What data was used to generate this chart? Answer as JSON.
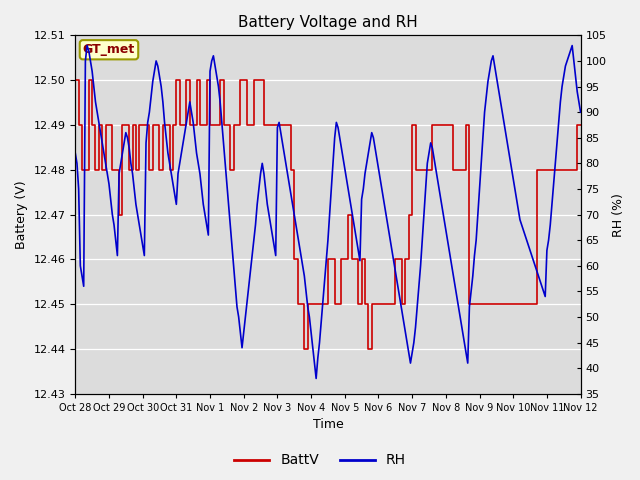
{
  "title": "Battery Voltage and RH",
  "xlabel": "Time",
  "ylabel_left": "Battery (V)",
  "ylabel_right": "RH (%)",
  "annotation": "GT_met",
  "left_ylim": [
    12.43,
    12.51
  ],
  "right_ylim": [
    35,
    105
  ],
  "left_yticks": [
    12.43,
    12.44,
    12.45,
    12.46,
    12.47,
    12.48,
    12.49,
    12.5,
    12.51
  ],
  "right_yticks": [
    35,
    40,
    45,
    50,
    55,
    60,
    65,
    70,
    75,
    80,
    85,
    90,
    95,
    100,
    105
  ],
  "xtick_labels": [
    "Oct 28",
    "Oct 29",
    "Oct 30",
    "Oct 31",
    "Nov 1",
    "Nov 2",
    "Nov 3",
    "Nov 4",
    "Nov 5",
    "Nov 6",
    "Nov 7",
    "Nov 8",
    "Nov 9",
    "Nov 10",
    "Nov 11",
    "Nov 12"
  ],
  "bg_color": "#dcdcdc",
  "fig_bg_color": "#f0f0f0",
  "line_color_battv": "#cc0000",
  "line_color_rh": "#0000cc",
  "legend_battv": "BattV",
  "legend_rh": "RH",
  "total_days": 15,
  "battv_x": [
    0.0,
    0.1,
    0.2,
    0.3,
    0.4,
    0.5,
    0.6,
    0.7,
    0.8,
    0.9,
    1.0,
    1.1,
    1.2,
    1.3,
    1.4,
    1.5,
    1.6,
    1.7,
    1.8,
    1.9,
    2.0,
    2.1,
    2.2,
    2.3,
    2.4,
    2.5,
    2.6,
    2.7,
    2.8,
    2.9,
    3.0,
    3.1,
    3.2,
    3.3,
    3.4,
    3.5,
    3.6,
    3.7,
    3.8,
    3.9,
    4.0,
    4.1,
    4.2,
    4.3,
    4.4,
    4.5,
    4.6,
    4.7,
    4.8,
    4.9,
    5.0,
    5.1,
    5.2,
    5.3,
    5.4,
    5.5,
    5.6,
    5.7,
    5.8,
    5.9,
    6.0,
    6.1,
    6.2,
    6.3,
    6.4,
    6.5,
    6.6,
    6.7,
    6.8,
    6.9,
    7.0,
    7.1,
    7.2,
    7.3,
    7.4,
    7.5,
    7.6,
    7.7,
    7.8,
    7.9,
    8.0,
    8.1,
    8.2,
    8.3,
    8.4,
    8.5,
    8.6,
    8.7,
    8.8,
    8.9,
    9.0,
    9.1,
    9.2,
    9.3,
    9.4,
    9.5,
    9.6,
    9.7,
    9.8,
    9.9,
    10.0,
    10.1,
    10.2,
    10.3,
    10.4,
    10.5,
    10.6,
    10.7,
    10.8,
    10.9,
    11.0,
    11.1,
    11.2,
    11.3,
    11.4,
    11.5,
    11.6,
    11.7,
    11.8,
    11.9,
    12.0,
    12.1,
    12.2,
    12.3,
    12.4,
    12.5,
    12.6,
    12.7,
    12.8,
    12.9,
    13.0,
    13.1,
    13.2,
    13.3,
    13.4,
    13.5,
    13.6,
    13.7,
    13.8,
    13.9,
    14.0,
    14.1,
    14.2,
    14.3,
    14.4,
    14.5,
    14.6,
    14.7,
    14.8,
    14.9,
    15.0
  ],
  "battv_y": [
    12.5,
    12.49,
    12.48,
    12.48,
    12.5,
    12.49,
    12.48,
    12.49,
    12.48,
    12.49,
    12.49,
    12.48,
    12.48,
    12.47,
    12.49,
    12.49,
    12.48,
    12.49,
    12.48,
    12.49,
    12.49,
    12.49,
    12.48,
    12.49,
    12.49,
    12.48,
    12.49,
    12.49,
    12.48,
    12.49,
    12.5,
    12.49,
    12.49,
    12.5,
    12.49,
    12.49,
    12.5,
    12.49,
    12.49,
    12.5,
    12.49,
    12.49,
    12.49,
    12.5,
    12.49,
    12.49,
    12.48,
    12.49,
    12.49,
    12.5,
    12.5,
    12.49,
    12.49,
    12.5,
    12.5,
    12.5,
    12.49,
    12.49,
    12.49,
    12.49,
    12.49,
    12.49,
    12.49,
    12.49,
    12.48,
    12.46,
    12.45,
    12.45,
    12.44,
    12.45,
    12.45,
    12.45,
    12.45,
    12.45,
    12.45,
    12.46,
    12.46,
    12.45,
    12.45,
    12.46,
    12.46,
    12.47,
    12.46,
    12.46,
    12.45,
    12.46,
    12.45,
    12.44,
    12.45,
    12.45,
    12.45,
    12.45,
    12.45,
    12.45,
    12.45,
    12.46,
    12.46,
    12.45,
    12.46,
    12.47,
    12.49,
    12.48,
    12.48,
    12.48,
    12.48,
    12.48,
    12.49,
    12.49,
    12.49,
    12.49,
    12.49,
    12.49,
    12.48,
    12.48,
    12.48,
    12.48,
    12.49,
    12.45,
    12.45,
    12.45,
    12.45,
    12.45,
    12.45,
    12.45,
    12.45,
    12.45,
    12.45,
    12.45,
    12.45,
    12.45,
    12.45,
    12.45,
    12.45,
    12.45,
    12.45,
    12.45,
    12.45,
    12.48,
    12.48,
    12.48,
    12.48,
    12.48,
    12.48,
    12.48,
    12.48,
    12.48,
    12.48,
    12.48,
    12.48,
    12.49,
    12.49
  ],
  "rh_x": [
    0.0,
    0.05,
    0.1,
    0.15,
    0.2,
    0.25,
    0.3,
    0.35,
    0.4,
    0.45,
    0.5,
    0.55,
    0.6,
    0.65,
    0.7,
    0.75,
    0.8,
    0.85,
    0.9,
    0.95,
    1.0,
    1.05,
    1.1,
    1.15,
    1.2,
    1.25,
    1.3,
    1.35,
    1.4,
    1.45,
    1.5,
    1.55,
    1.6,
    1.65,
    1.7,
    1.75,
    1.8,
    1.85,
    1.9,
    1.95,
    2.0,
    2.05,
    2.1,
    2.15,
    2.2,
    2.25,
    2.3,
    2.35,
    2.4,
    2.45,
    2.5,
    2.55,
    2.6,
    2.65,
    2.7,
    2.75,
    2.8,
    2.85,
    2.9,
    2.95,
    3.0,
    3.05,
    3.1,
    3.15,
    3.2,
    3.25,
    3.3,
    3.35,
    3.4,
    3.45,
    3.5,
    3.55,
    3.6,
    3.65,
    3.7,
    3.75,
    3.8,
    3.85,
    3.9,
    3.95,
    4.0,
    4.05,
    4.1,
    4.15,
    4.2,
    4.25,
    4.3,
    4.35,
    4.4,
    4.45,
    4.5,
    4.55,
    4.6,
    4.65,
    4.7,
    4.75,
    4.8,
    4.85,
    4.9,
    4.95,
    5.0,
    5.05,
    5.1,
    5.15,
    5.2,
    5.25,
    5.3,
    5.35,
    5.4,
    5.45,
    5.5,
    5.55,
    5.6,
    5.65,
    5.7,
    5.75,
    5.8,
    5.85,
    5.9,
    5.95,
    6.0,
    6.05,
    6.1,
    6.15,
    6.2,
    6.25,
    6.3,
    6.35,
    6.4,
    6.45,
    6.5,
    6.55,
    6.6,
    6.65,
    6.7,
    6.75,
    6.8,
    6.85,
    6.9,
    6.95,
    7.0,
    7.05,
    7.1,
    7.15,
    7.2,
    7.25,
    7.3,
    7.35,
    7.4,
    7.45,
    7.5,
    7.55,
    7.6,
    7.65,
    7.7,
    7.75,
    7.8,
    7.85,
    7.9,
    7.95,
    8.0,
    8.05,
    8.1,
    8.15,
    8.2,
    8.25,
    8.3,
    8.35,
    8.4,
    8.45,
    8.5,
    8.55,
    8.6,
    8.65,
    8.7,
    8.75,
    8.8,
    8.85,
    8.9,
    8.95,
    9.0,
    9.05,
    9.1,
    9.15,
    9.2,
    9.25,
    9.3,
    9.35,
    9.4,
    9.45,
    9.5,
    9.55,
    9.6,
    9.65,
    9.7,
    9.75,
    9.8,
    9.85,
    9.9,
    9.95,
    10.0,
    10.05,
    10.1,
    10.15,
    10.2,
    10.25,
    10.3,
    10.35,
    10.4,
    10.45,
    10.5,
    10.55,
    10.6,
    10.65,
    10.7,
    10.75,
    10.8,
    10.85,
    10.9,
    10.95,
    11.0,
    11.05,
    11.1,
    11.15,
    11.2,
    11.25,
    11.3,
    11.35,
    11.4,
    11.45,
    11.5,
    11.55,
    11.6,
    11.65,
    11.7,
    11.75,
    11.8,
    11.85,
    11.9,
    11.95,
    12.0,
    12.05,
    12.1,
    12.15,
    12.2,
    12.25,
    12.3,
    12.35,
    12.4,
    12.45,
    12.5,
    12.55,
    12.6,
    12.65,
    12.7,
    12.75,
    12.8,
    12.85,
    12.9,
    12.95,
    13.0,
    13.05,
    13.1,
    13.15,
    13.2,
    13.25,
    13.3,
    13.35,
    13.4,
    13.45,
    13.5,
    13.55,
    13.6,
    13.65,
    13.7,
    13.75,
    13.8,
    13.85,
    13.9,
    13.95,
    14.0,
    14.05,
    14.1,
    14.15,
    14.2,
    14.25,
    14.3,
    14.35,
    14.4,
    14.45,
    14.5,
    14.55,
    14.6,
    14.65,
    14.7,
    14.75,
    14.8,
    14.85,
    14.9,
    14.95,
    15.0
  ],
  "rh_y": [
    82,
    80,
    75,
    60,
    58,
    56,
    100,
    103,
    102,
    100,
    98,
    95,
    92,
    90,
    88,
    86,
    84,
    82,
    80,
    78,
    76,
    73,
    70,
    68,
    65,
    62,
    78,
    80,
    82,
    84,
    86,
    85,
    83,
    80,
    78,
    75,
    72,
    70,
    68,
    66,
    64,
    62,
    84,
    88,
    90,
    93,
    96,
    98,
    100,
    99,
    97,
    95,
    92,
    88,
    85,
    82,
    80,
    78,
    76,
    74,
    72,
    78,
    80,
    82,
    84,
    86,
    88,
    90,
    92,
    90,
    88,
    85,
    82,
    80,
    78,
    75,
    72,
    70,
    68,
    66,
    98,
    100,
    101,
    99,
    97,
    95,
    92,
    88,
    84,
    80,
    76,
    72,
    68,
    64,
    60,
    56,
    52,
    50,
    47,
    44,
    47,
    50,
    53,
    56,
    59,
    62,
    65,
    68,
    72,
    75,
    78,
    80,
    78,
    75,
    72,
    70,
    68,
    66,
    64,
    62,
    87,
    88,
    86,
    84,
    82,
    80,
    78,
    76,
    74,
    72,
    70,
    68,
    66,
    64,
    62,
    60,
    58,
    55,
    52,
    50,
    47,
    44,
    41,
    38,
    42,
    45,
    49,
    53,
    57,
    61,
    65,
    70,
    75,
    80,
    85,
    88,
    87,
    85,
    83,
    81,
    79,
    77,
    75,
    73,
    71,
    69,
    67,
    65,
    63,
    61,
    73,
    75,
    78,
    80,
    82,
    84,
    86,
    85,
    83,
    81,
    79,
    77,
    75,
    73,
    71,
    69,
    67,
    65,
    63,
    61,
    59,
    57,
    55,
    53,
    51,
    49,
    47,
    45,
    43,
    41,
    43,
    45,
    48,
    52,
    56,
    60,
    65,
    70,
    75,
    80,
    82,
    84,
    83,
    81,
    79,
    77,
    75,
    73,
    71,
    69,
    67,
    65,
    63,
    61,
    59,
    57,
    55,
    53,
    51,
    49,
    47,
    45,
    43,
    41,
    52,
    55,
    58,
    62,
    65,
    70,
    75,
    80,
    85,
    90,
    93,
    96,
    98,
    100,
    101,
    99,
    97,
    95,
    93,
    91,
    89,
    87,
    85,
    83,
    81,
    79,
    77,
    75,
    73,
    71,
    69,
    68,
    67,
    66,
    65,
    64,
    63,
    62,
    61,
    60,
    59,
    58,
    57,
    56,
    55,
    54,
    63,
    65,
    68,
    72,
    76,
    80,
    84,
    88,
    92,
    95,
    97,
    99,
    100,
    101,
    102,
    103,
    100,
    97,
    94,
    92,
    90
  ]
}
